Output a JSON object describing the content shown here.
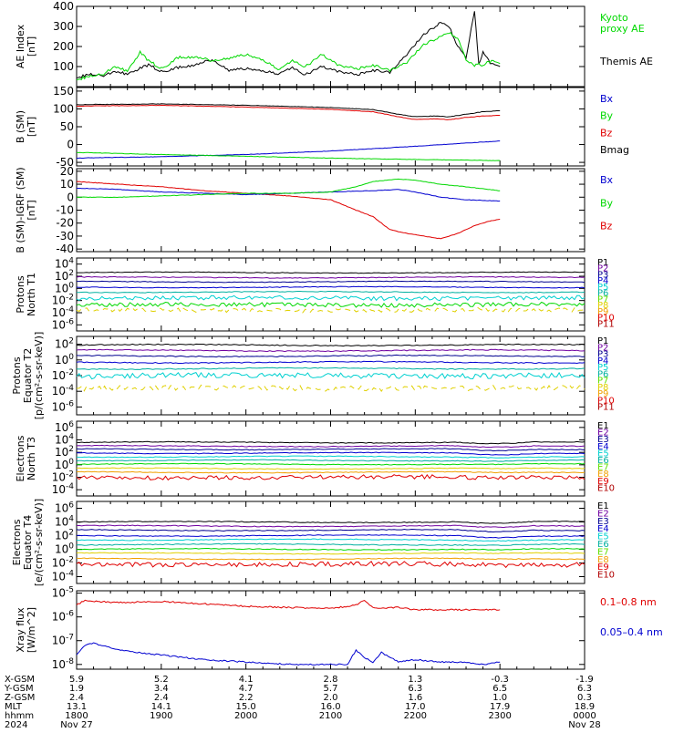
{
  "colors": {
    "black": "#000000",
    "red": "#e00000",
    "green": "#00d800",
    "blue": "#0000d0",
    "navy": "#000090",
    "purple": "#7000a0",
    "cyan": "#00d0d0",
    "teal": "#00b0a0",
    "yellow": "#e0d000",
    "orange": "#f0a000",
    "darkred": "#b00000",
    "lime": "#60e000"
  },
  "chart_data": [
    {
      "type": "line",
      "id": "ae",
      "ylabel": "AE Index\n[nT]",
      "yticks": [
        "100",
        "200",
        "300",
        "400"
      ],
      "ylim": [
        0,
        400
      ],
      "legend": [
        {
          "label": "Kyoto\nproxy AE",
          "color": "green"
        },
        {
          "label": "Themis AE",
          "color": "black"
        }
      ],
      "series": [
        {
          "name": "Themis AE",
          "color": "black",
          "x": [
            0,
            3,
            6,
            9,
            12,
            15,
            17,
            20,
            24,
            28,
            32,
            36,
            40,
            44,
            48,
            51,
            54,
            58,
            62,
            66,
            70,
            74,
            78,
            82,
            86,
            88,
            90,
            92,
            94,
            95,
            96,
            97,
            98,
            100
          ],
          "values": [
            45,
            60,
            55,
            70,
            65,
            90,
            110,
            75,
            95,
            110,
            135,
            80,
            90,
            75,
            65,
            95,
            60,
            100,
            75,
            60,
            80,
            70,
            160,
            260,
            320,
            300,
            200,
            140,
            380,
            110,
            170,
            140,
            110,
            100
          ]
        },
        {
          "name": "Kyoto proxy AE",
          "color": "green",
          "x": [
            0,
            3,
            6,
            9,
            12,
            15,
            17,
            20,
            24,
            28,
            32,
            36,
            40,
            44,
            48,
            51,
            54,
            58,
            62,
            66,
            70,
            74,
            78,
            82,
            86,
            88,
            90,
            92,
            94,
            95,
            96,
            97,
            98,
            100
          ],
          "values": [
            35,
            50,
            60,
            95,
            80,
            170,
            130,
            90,
            145,
            150,
            130,
            140,
            160,
            130,
            85,
            130,
            100,
            160,
            105,
            90,
            105,
            80,
            120,
            210,
            250,
            270,
            240,
            130,
            105,
            115,
            100,
            120,
            125,
            115
          ]
        }
      ]
    },
    {
      "type": "line",
      "id": "bsm",
      "ylabel": "B (SM)\n[nT]",
      "yticks": [
        "-50",
        "0",
        "50",
        "100",
        "150"
      ],
      "ylim": [
        -60,
        160
      ],
      "legend": [
        {
          "label": "Bx",
          "color": "blue"
        },
        {
          "label": "By",
          "color": "green"
        },
        {
          "label": "Bz",
          "color": "red"
        },
        {
          "label": "Bmag",
          "color": "black"
        }
      ],
      "series": [
        {
          "name": "Bmag",
          "color": "black",
          "x": [
            0,
            20,
            40,
            60,
            70,
            76,
            80,
            84,
            88,
            92,
            96,
            100
          ],
          "values": [
            112,
            114,
            110,
            104,
            98,
            85,
            78,
            80,
            78,
            85,
            92,
            95
          ]
        },
        {
          "name": "Bz",
          "color": "red",
          "x": [
            0,
            20,
            40,
            60,
            70,
            76,
            80,
            84,
            88,
            92,
            96,
            100
          ],
          "values": [
            108,
            110,
            105,
            99,
            92,
            78,
            70,
            72,
            70,
            76,
            80,
            82
          ]
        },
        {
          "name": "Bx",
          "color": "blue",
          "x": [
            0,
            20,
            40,
            60,
            80,
            100
          ],
          "values": [
            -38,
            -34,
            -28,
            -18,
            -5,
            10
          ]
        },
        {
          "name": "By",
          "color": "green",
          "x": [
            0,
            20,
            40,
            60,
            80,
            100
          ],
          "values": [
            -22,
            -28,
            -33,
            -38,
            -42,
            -45
          ]
        }
      ]
    },
    {
      "type": "line",
      "id": "bdiff",
      "ylabel": "B (SM)-IGRF (SM)\n[nT]",
      "yticks": [
        "-40",
        "-30",
        "-20",
        "-10",
        "0",
        "10",
        "20"
      ],
      "ylim": [
        -42,
        22
      ],
      "legend": [
        {
          "label": "Bx",
          "color": "blue"
        },
        {
          "label": "By",
          "color": "green"
        },
        {
          "label": "Bz",
          "color": "red"
        }
      ],
      "series": [
        {
          "name": "Bz",
          "color": "red",
          "x": [
            0,
            10,
            20,
            30,
            40,
            50,
            60,
            66,
            70,
            74,
            78,
            82,
            86,
            90,
            94,
            98,
            100
          ],
          "values": [
            12,
            10,
            8,
            5,
            3,
            1,
            -2,
            -10,
            -15,
            -25,
            -28,
            -30,
            -32,
            -28,
            -22,
            -18,
            -17
          ]
        },
        {
          "name": "Bx",
          "color": "blue",
          "x": [
            0,
            10,
            20,
            30,
            40,
            50,
            60,
            70,
            76,
            80,
            86,
            92,
            100
          ],
          "values": [
            7,
            6,
            4,
            3,
            2,
            3,
            4,
            5,
            6,
            4,
            0,
            -2,
            -3
          ]
        },
        {
          "name": "By",
          "color": "green",
          "x": [
            0,
            10,
            20,
            30,
            40,
            50,
            60,
            66,
            70,
            76,
            80,
            86,
            92,
            100
          ],
          "values": [
            0,
            0,
            1,
            2,
            3,
            3,
            4,
            8,
            12,
            14,
            13,
            10,
            8,
            5
          ]
        }
      ]
    },
    {
      "type": "line",
      "id": "protons_north",
      "ylabel": "Protons\nNorth T1",
      "yticks": [
        "10^4",
        "10^2",
        "10^0",
        "10^-2",
        "10^-4",
        "10^-6"
      ],
      "ylim": [
        -7,
        5
      ],
      "log": true,
      "legend": [
        {
          "label": "P1",
          "color": "black"
        },
        {
          "label": "P2",
          "color": "purple"
        },
        {
          "label": "P3",
          "color": "navy"
        },
        {
          "label": "P4",
          "color": "blue"
        },
        {
          "label": "P5",
          "color": "cyan"
        },
        {
          "label": "P6",
          "color": "teal"
        },
        {
          "label": "P7",
          "color": "lime"
        },
        {
          "label": "P8",
          "color": "yellow"
        },
        {
          "label": "P9",
          "color": "orange"
        },
        {
          "label": "P10",
          "color": "red"
        },
        {
          "label": "P11",
          "color": "darkred"
        }
      ],
      "levels": [
        {
          "color": "black",
          "value": 2.6
        },
        {
          "color": "purple",
          "value": 1.8
        },
        {
          "color": "navy",
          "value": 1.1
        },
        {
          "color": "blue",
          "value": 0.2
        },
        {
          "color": "teal",
          "value": -0.6
        },
        {
          "color": "cyan",
          "value": -1.6
        },
        {
          "color": "green",
          "value": -2.7
        },
        {
          "color": "yellow",
          "value": -3.6
        }
      ]
    },
    {
      "type": "line",
      "id": "protons_equator",
      "ylabel": "Protons\nEquator T2\n[p/(cm²-s-sr-keV)]",
      "yticks": [
        "10^2",
        "10^0",
        "10^-2",
        "10^-4",
        "10^-6"
      ],
      "ylim": [
        -7,
        3
      ],
      "log": true,
      "legend": [
        {
          "label": "P1",
          "color": "black"
        },
        {
          "label": "P2",
          "color": "purple"
        },
        {
          "label": "P3",
          "color": "navy"
        },
        {
          "label": "P4",
          "color": "blue"
        },
        {
          "label": "P5",
          "color": "cyan"
        },
        {
          "label": "P6",
          "color": "teal"
        },
        {
          "label": "P7",
          "color": "lime"
        },
        {
          "label": "P8",
          "color": "yellow"
        },
        {
          "label": "P9",
          "color": "orange"
        },
        {
          "label": "P10",
          "color": "red"
        },
        {
          "label": "P11",
          "color": "darkred"
        }
      ],
      "levels": [
        {
          "color": "black",
          "value": 1.9
        },
        {
          "color": "purple",
          "value": 1.2
        },
        {
          "color": "navy",
          "value": 0.5
        },
        {
          "color": "blue",
          "value": -0.3
        },
        {
          "color": "teal",
          "value": -1.1
        },
        {
          "color": "cyan",
          "value": -2.0
        },
        {
          "color": "yellow",
          "value": -3.6
        }
      ]
    },
    {
      "type": "line",
      "id": "electrons_north",
      "ylabel": "Electrons\nNorth T3",
      "yticks": [
        "10^6",
        "10^4",
        "10^2",
        "10^0",
        "10^-2",
        "10^-4"
      ],
      "ylim": [
        -5,
        7
      ],
      "log": true,
      "legend": [
        {
          "label": "E1",
          "color": "black"
        },
        {
          "label": "E2",
          "color": "purple"
        },
        {
          "label": "E3",
          "color": "navy"
        },
        {
          "label": "E4",
          "color": "blue"
        },
        {
          "label": "E5",
          "color": "cyan"
        },
        {
          "label": "E6",
          "color": "teal"
        },
        {
          "label": "E7",
          "color": "lime"
        },
        {
          "label": "E8",
          "color": "orange"
        },
        {
          "label": "E9",
          "color": "red"
        },
        {
          "label": "E10",
          "color": "darkred"
        }
      ],
      "levels": [
        {
          "color": "black",
          "value": 3.6
        },
        {
          "color": "purple",
          "value": 3.0
        },
        {
          "color": "navy",
          "value": 2.5
        },
        {
          "color": "blue",
          "value": 1.9
        },
        {
          "color": "cyan",
          "value": 1.3
        },
        {
          "color": "teal",
          "value": 0.7
        },
        {
          "color": "green",
          "value": 0.1
        },
        {
          "color": "yellow",
          "value": -0.6
        },
        {
          "color": "orange",
          "value": -1.2
        },
        {
          "color": "red",
          "value": -2.0
        }
      ]
    },
    {
      "type": "line",
      "id": "electrons_equator",
      "ylabel": "Electrons\nEquator T4\n[e/(cm²-s-sr-keV)]",
      "yticks": [
        "10^6",
        "10^4",
        "10^2",
        "10^0",
        "10^-2",
        "10^-4"
      ],
      "ylim": [
        -5,
        7
      ],
      "log": true,
      "legend": [
        {
          "label": "E1",
          "color": "black"
        },
        {
          "label": "E2",
          "color": "purple"
        },
        {
          "label": "E3",
          "color": "navy"
        },
        {
          "label": "E4",
          "color": "blue"
        },
        {
          "label": "E5",
          "color": "cyan"
        },
        {
          "label": "E6",
          "color": "teal"
        },
        {
          "label": "E7",
          "color": "lime"
        },
        {
          "label": "E8",
          "color": "orange"
        },
        {
          "label": "E9",
          "color": "red"
        },
        {
          "label": "E10",
          "color": "darkred"
        }
      ],
      "levels": [
        {
          "color": "black",
          "value": 4.0
        },
        {
          "color": "purple",
          "value": 3.4
        },
        {
          "color": "navy",
          "value": 2.8
        },
        {
          "color": "blue",
          "value": 2.0
        },
        {
          "color": "cyan",
          "value": 1.4
        },
        {
          "color": "teal",
          "value": 0.7
        },
        {
          "color": "green",
          "value": 0.0
        },
        {
          "color": "yellow",
          "value": -0.6
        },
        {
          "color": "orange",
          "value": -1.4
        },
        {
          "color": "red",
          "value": -2.2
        }
      ]
    },
    {
      "type": "line",
      "id": "xray",
      "ylabel": "Xray flux\n[W/m^2]",
      "yticks": [
        "10^-5",
        "10^-6",
        "10^-7",
        "10^-8"
      ],
      "ylim": [
        -8.2,
        -4.9
      ],
      "log": true,
      "legend": [
        {
          "label": "0.1–0.8 nm",
          "color": "red"
        },
        {
          "label": "0.05–0.4 nm",
          "color": "blue"
        }
      ],
      "series": [
        {
          "name": "0.1-0.8 nm",
          "color": "red",
          "x": [
            0,
            2,
            5,
            10,
            20,
            30,
            40,
            50,
            60,
            66,
            68,
            70,
            72,
            76,
            80,
            90,
            100
          ],
          "values": [
            -5.5,
            -5.3,
            -5.35,
            -5.4,
            -5.35,
            -5.45,
            -5.55,
            -5.6,
            -5.65,
            -5.5,
            -5.3,
            -5.6,
            -5.65,
            -5.6,
            -5.7,
            -5.7,
            -5.7
          ]
        },
        {
          "name": "0.05-0.4 nm",
          "color": "blue",
          "x": [
            0,
            2,
            4,
            6,
            10,
            20,
            30,
            40,
            50,
            60,
            64,
            66,
            68,
            70,
            72,
            76,
            80,
            86,
            90,
            96,
            100
          ],
          "values": [
            -7.6,
            -7.2,
            -7.1,
            -7.2,
            -7.4,
            -7.6,
            -7.8,
            -7.9,
            -8.0,
            -8.0,
            -8.0,
            -7.4,
            -7.7,
            -7.9,
            -7.5,
            -7.9,
            -7.8,
            -7.9,
            -7.9,
            -8.0,
            -7.9
          ]
        }
      ]
    }
  ],
  "axis_table": {
    "row_labels": [
      "X-GSM",
      "Y-GSM",
      "Z-GSM",
      "MLT",
      "hhmm",
      "2024"
    ],
    "columns": [
      {
        "x": 0,
        "values": [
          "5.9",
          "1.9",
          "2.4",
          "13.1",
          "1800",
          "Nov 27"
        ]
      },
      {
        "x": 20,
        "values": [
          "5.2",
          "3.4",
          "2.4",
          "14.1",
          "1900",
          ""
        ]
      },
      {
        "x": 40,
        "values": [
          "4.1",
          "4.7",
          "2.2",
          "15.0",
          "2000",
          ""
        ]
      },
      {
        "x": 60,
        "values": [
          "2.8",
          "5.7",
          "2.0",
          "16.0",
          "2100",
          ""
        ]
      },
      {
        "x": 80,
        "values": [
          "1.3",
          "6.3",
          "1.6",
          "17.0",
          "2200",
          ""
        ]
      },
      {
        "x": 100,
        "values": [
          "-0.3",
          "6.5",
          "1.0",
          "17.9",
          "2300",
          ""
        ]
      },
      {
        "x": 120,
        "values": [
          "-1.9",
          "6.3",
          "0.3",
          "18.9",
          "0000",
          "Nov 28"
        ]
      }
    ]
  }
}
